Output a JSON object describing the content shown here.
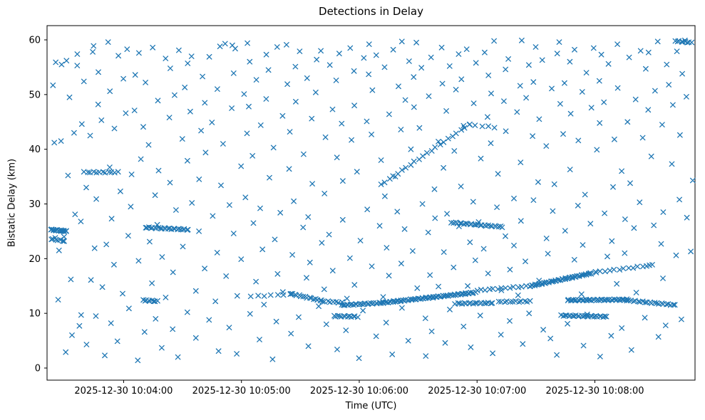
{
  "chart_data": {
    "type": "scatter",
    "title": "Detections in Delay",
    "xlabel": "Time (UTC)",
    "ylabel": "Bistatic Delay (km)",
    "marker": "x",
    "marker_color": "#1f77b4",
    "grid": false,
    "legend": "none",
    "ylim": [
      -2,
      62
    ],
    "y_ticks": [
      0,
      10,
      20,
      30,
      40,
      50,
      60
    ],
    "xlim_s": [
      0,
      330
    ],
    "x_tick_positions_s": [
      39,
      99,
      159,
      219,
      279
    ],
    "x_tick_labels": [
      "2025-12-30 10:04:00",
      "2025-12-30 10:05:00",
      "2025-12-30 10:06:00",
      "2025-12-30 10:07:00",
      "2025-12-30 10:08:00"
    ],
    "clutter_format": "flat pairs [t_seconds_from_left_axis_edge, bistatic_delay_km]",
    "clutter_points_ty": [
      3,
      51.7,
      4,
      55.9,
      4.5,
      41.2,
      5,
      21.5,
      5.5,
      23.8,
      6,
      55.5,
      7,
      12.5,
      7.5,
      24.0,
      8,
      41.5,
      9,
      2.9,
      10,
      56.2,
      11,
      35.2,
      12,
      6.0,
      12.5,
      49.5,
      13,
      28.1,
      13.5,
      16.2,
      14,
      55.3,
      15,
      43.0,
      15.5,
      7.7,
      16,
      57.4,
      17,
      26.8,
      17.5,
      44.6,
      18,
      9.7,
      19,
      33.0,
      20,
      52.4,
      21,
      16.1,
      21.5,
      4.3,
      22,
      57.8,
      23,
      42.5,
      23.5,
      21.9,
      24,
      58.9,
      25,
      9.5,
      25.5,
      48.2,
      26,
      30.9,
      27,
      14.8,
      27.5,
      54.1,
      28,
      2.3,
      29,
      45.3,
      30,
      59.6,
      31,
      22.6,
      31.5,
      36.7,
      32,
      50.6,
      33,
      8.2,
      33.5,
      43.8,
      34,
      27.3,
      35,
      57.1,
      35.5,
      18.9,
      36,
      32.3,
      37,
      4.9,
      38,
      52.9,
      39,
      13.6,
      40,
      46.6,
      41,
      24.2,
      41.5,
      58.3,
      42,
      35.4,
      43,
      10.9,
      43.5,
      53.6,
      44,
      29.5,
      45,
      1.4,
      45.5,
      47.1,
      46,
      19.6,
      47,
      57.6,
      48,
      38.2,
      49,
      6.6,
      50,
      44.1,
      51,
      23.1,
      51.5,
      52.2,
      52,
      15.5,
      53,
      40.8,
      54,
      31.6,
      54.5,
      58.6,
      55,
      9.0,
      56,
      26.2,
      57,
      48.9,
      57.5,
      3.7,
      58,
      36.1,
      59,
      56.6,
      60,
      20.3,
      61,
      45.8,
      61.5,
      12.9,
      62,
      54.8,
      63,
      33.9,
      64,
      7.1,
      64.5,
      49.9,
      65,
      17.5,
      66,
      58.1,
      67,
      28.9,
      67.5,
      41.9,
      68,
      2.0,
      69,
      51.3,
      70,
      22.2,
      71,
      37.9,
      71.5,
      10.2,
      72,
      55.7,
      73,
      30.2,
      74,
      46.9,
      74.5,
      14.1,
      75,
      57.0,
      76,
      25.0,
      77,
      5.5,
      77.5,
      43.4,
      78,
      34.5,
      79,
      53.3,
      80,
      18.2,
      81,
      48.5,
      81.5,
      8.8,
      82,
      39.4,
      83,
      27.8,
      84,
      56.9,
      84.5,
      12.2,
      85,
      44.9,
      86,
      21.1,
      87,
      51.0,
      87.5,
      3.1,
      88,
      33.4,
      89,
      58.8,
      90,
      16.8,
      91,
      41.0,
      91.5,
      29.8,
      92,
      59.3,
      93,
      47.5,
      93.5,
      7.4,
      94,
      59.0,
      95,
      24.6,
      95.5,
      53.9,
      96,
      13.2,
      97,
      58.4,
      97.5,
      36.9,
      98,
      2.6,
      99,
      50.1,
      100,
      19.9,
      101,
      42.9,
      101.5,
      31.2,
      102,
      59.4,
      103,
      9.9,
      103.5,
      47.8,
      104,
      26.5,
      104.5,
      56.0,
      105,
      15.8,
      106,
      38.8,
      107,
      5.2,
      107.5,
      52.7,
      108,
      29.2,
      109,
      44.4,
      110,
      21.7,
      111,
      57.3,
      111.5,
      11.6,
      112,
      34.8,
      113,
      49.2,
      113.5,
      1.6,
      114,
      54.5,
      115,
      23.5,
      116,
      40.3,
      116.5,
      8.5,
      117,
      58.7,
      118,
      17.2,
      119,
      46.1,
      120,
      28.4,
      121,
      51.9,
      121.5,
      13.9,
      122,
      36.4,
      123,
      59.1,
      123.5,
      6.3,
      124,
      43.2,
      125,
      20.7,
      126,
      55.1,
      126.5,
      30.5,
      127,
      9.3,
      128,
      48.7,
      129,
      25.7,
      130,
      57.9,
      131,
      16.5,
      131.5,
      39.1,
      132,
      53.0,
      133,
      27.6,
      133.5,
      4.0,
      134,
      45.6,
      135,
      19.3,
      136,
      56.4,
      136.5,
      33.7,
      137,
      11.3,
      138,
      50.4,
      139,
      22.9,
      140,
      58.0,
      141,
      14.4,
      141.5,
      42.2,
      142,
      31.9,
      143,
      55.4,
      143.5,
      8.0,
      144,
      47.3,
      145,
      24.4,
      146,
      52.6,
      146.5,
      17.8,
      147,
      38.5,
      148,
      3.4,
      149,
      57.5,
      150,
      27.1,
      151,
      44.7,
      151.5,
      12.7,
      152,
      34.2,
      153,
      58.5,
      153.5,
      6.9,
      154,
      41.7,
      155,
      20.1,
      156,
      54.3,
      156.5,
      15.2,
      157,
      48.0,
      158,
      1.8,
      159,
      35.9,
      160,
      56.7,
      161,
      23.3,
      161.5,
      45.1,
      162,
      10.5,
      163,
      53.7,
      163.5,
      29.0,
      164,
      59.2,
      165,
      18.6,
      166,
      42.7,
      166.5,
      5.8,
      167,
      50.8,
      168,
      26.0,
      169,
      57.2,
      170,
      13.0,
      171,
      38.0,
      171.5,
      31.4,
      172,
      55.0,
      173,
      8.3,
      173.5,
      46.4,
      174,
      22.0,
      175,
      58.2,
      175.5,
      16.9,
      176,
      35.0,
      177,
      2.5,
      178,
      51.5,
      179,
      28.6,
      180,
      43.6,
      180.5,
      59.7,
      181,
      19.1,
      181.5,
      49.0,
      182,
      11.0,
      183,
      56.1,
      183.5,
      25.4,
      184,
      40.0,
      185,
      5.0,
      186,
      53.2,
      186.5,
      21.4,
      187,
      47.7,
      188,
      14.6,
      189,
      59.5,
      190,
      30.0,
      191,
      43.9,
      191.5,
      2.2,
      192,
      54.9,
      193,
      24.8,
      193.5,
      9.1,
      194,
      49.7,
      195,
      17.0,
      196,
      56.8,
      196.5,
      32.7,
      197,
      6.7,
      198,
      41.4,
      199,
      27.4,
      200,
      52.0,
      200.5,
      14.9,
      201,
      36.6,
      201.5,
      58.6,
      202,
      21.2,
      203,
      47.0,
      203.5,
      4.6,
      204,
      55.2,
      205,
      28.2,
      206,
      39.7,
      206.5,
      10.7,
      207,
      50.9,
      208,
      18.4,
      209,
      57.4,
      210,
      25.9,
      211,
      33.2,
      211.5,
      7.6,
      212,
      52.8,
      213,
      15.0,
      213.5,
      44.3,
      214,
      23.0,
      215,
      58.3,
      216,
      30.4,
      216.5,
      3.8,
      217,
      48.4,
      218,
      19.7,
      219,
      55.8,
      220,
      38.3,
      221,
      26.7,
      221.5,
      57.7,
      222,
      9.6,
      223,
      45.9,
      223.5,
      21.8,
      224,
      53.5,
      225,
      17.3,
      226,
      41.1,
      226.5,
      2.7,
      227,
      50.2,
      228,
      29.4,
      229,
      59.8,
      230,
      14.2,
      231,
      35.5,
      231.5,
      48.8,
      232,
      6.1,
      233,
      54.6,
      233.5,
      24.1,
      234,
      43.3,
      235,
      18.0,
      236,
      56.5,
      236.5,
      31.0,
      237,
      8.6,
      238,
      46.8,
      239,
      22.4,
      240,
      51.6,
      240.5,
      13.3,
      241,
      37.6,
      241.5,
      59.9,
      242,
      26.9,
      243,
      49.4,
      243.5,
      4.4,
      244,
      55.4,
      245,
      19.5,
      246,
      42.4,
      246.5,
      10.0,
      247,
      52.3,
      248,
      30.7,
      249,
      58.7,
      250,
      16.0,
      251,
      34.0,
      251.5,
      7.0,
      252,
      45.5,
      253,
      23.7,
      253.5,
      56.3,
      254,
      20.9,
      255,
      40.6,
      256,
      5.4,
      257,
      51.1,
      258,
      28.7,
      259,
      57.5,
      259.5,
      33.6,
      260,
      48.3,
      261,
      2.4,
      261.5,
      42.8,
      262,
      59.6,
      263,
      25.1,
      264,
      52.1,
      265,
      8.1,
      266,
      36.3,
      267,
      56.0,
      267.5,
      19.8,
      268,
      46.5,
      269,
      29.7,
      270,
      58.2,
      271,
      13.5,
      271.5,
      41.6,
      272,
      50.5,
      273,
      22.5,
      273.5,
      4.1,
      274,
      54.0,
      275,
      31.7,
      276,
      47.6,
      276.5,
      9.8,
      277,
      58.5,
      278,
      26.4,
      279,
      39.9,
      280,
      17.6,
      281,
      52.5,
      281.5,
      2.1,
      282,
      44.8,
      283,
      28.3,
      283.5,
      57.3,
      284,
      20.4,
      285,
      48.6,
      286,
      5.9,
      287,
      55.6,
      287.5,
      33.1,
      288,
      23.2,
      289,
      41.8,
      290,
      59.2,
      291,
      15.4,
      291.5,
      36.0,
      292,
      51.2,
      293,
      27.2,
      294,
      7.3,
      294.5,
      45.0,
      295,
      21.0,
      296,
      56.8,
      297,
      33.8,
      298,
      3.3,
      299,
      49.1,
      300,
      25.6,
      301,
      58.0,
      301.5,
      13.8,
      302,
      42.1,
      303,
      30.3,
      304,
      54.7,
      305,
      9.2,
      306,
      47.2,
      306.5,
      18.8,
      307,
      57.7,
      308,
      26.1,
      309,
      38.7,
      310,
      5.7,
      311,
      50.7,
      311.5,
      22.7,
      312,
      59.7,
      313,
      16.4,
      313.5,
      44.5,
      314,
      28.5,
      315,
      55.5,
      316,
      7.8,
      317,
      37.3,
      318,
      51.8,
      319,
      20.6,
      320,
      48.1,
      321,
      30.8,
      321.5,
      57.9,
      322,
      42.6,
      323,
      8.9,
      324,
      53.8,
      325,
      27.5,
      326,
      59.9,
      326.5,
      21.3,
      327,
      49.6,
      327.5,
      34.3
    ],
    "track_format": "[t0_s, t1_s, y0_km, y1_km, n_points] dense detection streaks",
    "track_segments": [
      [
        2,
        10,
        25.3,
        25.0,
        16
      ],
      [
        2,
        9,
        23.6,
        23.2,
        7
      ],
      [
        50,
        72,
        25.7,
        25.3,
        24
      ],
      [
        49,
        56,
        12.4,
        12.2,
        9
      ],
      [
        19,
        36,
        35.8,
        35.8,
        12
      ],
      [
        104,
        124,
        13.1,
        13.5,
        7
      ],
      [
        124,
        140,
        13.6,
        12.3,
        16
      ],
      [
        140,
        150,
        12.2,
        12.0,
        8
      ],
      [
        146,
        158,
        9.5,
        9.4,
        13
      ],
      [
        150,
        170,
        11.5,
        11.9,
        24
      ],
      [
        170,
        218,
        11.9,
        13.8,
        65
      ],
      [
        208,
        227,
        11.8,
        11.9,
        18
      ],
      [
        206,
        232,
        26.6,
        25.8,
        26
      ],
      [
        170,
        215,
        33.5,
        44.5,
        22
      ],
      [
        215,
        228,
        44.5,
        44.0,
        5
      ],
      [
        219,
        246,
        14.2,
        15.0,
        14
      ],
      [
        246,
        277,
        15.0,
        17.3,
        45
      ],
      [
        277,
        308,
        17.4,
        18.8,
        14
      ],
      [
        262,
        285,
        9.6,
        9.4,
        26
      ],
      [
        230,
        246,
        12.1,
        12.2,
        12
      ],
      [
        265,
        295,
        12.4,
        12.5,
        40
      ],
      [
        295,
        320,
        12.4,
        11.5,
        22
      ],
      [
        320,
        328,
        59.8,
        59.5,
        9
      ]
    ]
  }
}
